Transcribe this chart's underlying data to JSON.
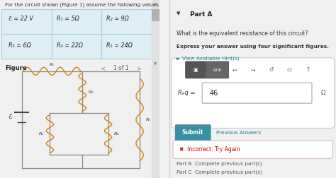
{
  "title_text": "For the circuit shown (Figure 1) assume the following values",
  "table_data": [
    [
      "ℰ = 22 V",
      "R₁ = 5Ω",
      "R₂ = 9Ω"
    ],
    [
      "R₃ = 6Ω",
      "R₄ = 22Ω",
      "R₅ = 24Ω"
    ]
  ],
  "figure_label": "Figure",
  "page_label": "1 of 1",
  "part_a_label": "Part A",
  "part_a_question": "What is the equivalent resistance of this circuit?",
  "part_a_note": "Express your answer using four significant figures.",
  "hint_text": "► View Available Hint(s)",
  "req_label": "Rₑq =",
  "req_value": "46",
  "req_unit": "Ω",
  "submit_text": "Submit",
  "prev_answers_text": "Previous Answers",
  "incorrect_text": "✖  Incorrect: Try Again",
  "part_b_text": "Part B  Complete previous part(s)",
  "part_c_text": "Part C  Complete previous part(s)",
  "bg_left": "#f0f0f0",
  "bg_right": "#f5f5f5",
  "table_bg": "#ddeef5",
  "panel_bg": "#ffffff",
  "orange_color": "#d4820a",
  "teal_color": "#1a7a8a",
  "submit_color": "#3a8fa0",
  "incorrect_bg": "#fdf5f5",
  "incorrect_red": "#cc0000",
  "wire_color": "#b8b8b8",
  "scrollbar_color": "#cccccc"
}
